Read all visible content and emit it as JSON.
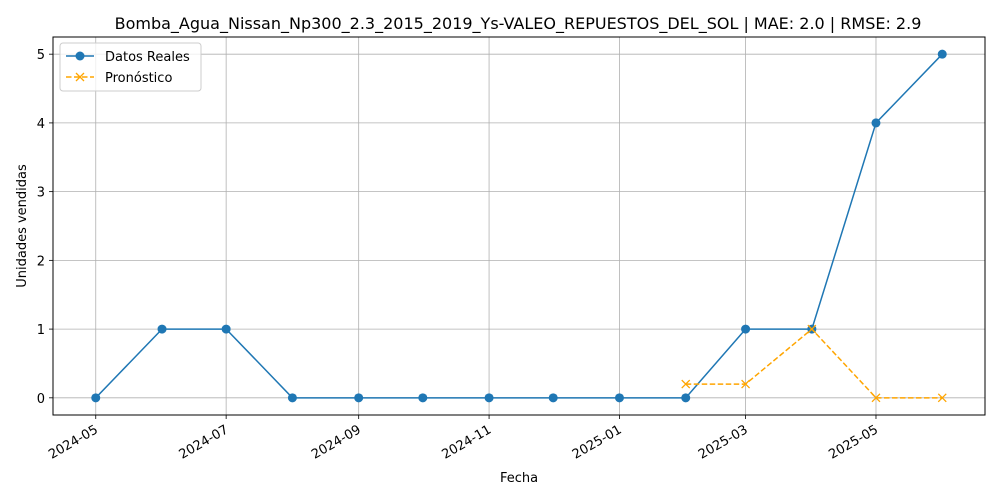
{
  "chart_data": {
    "type": "line",
    "title": "Bomba_Agua_Nissan_Np300_2.3_2015_2019_Ys-VALEO_REPUESTOS_DEL_SOL | MAE: 2.0 | RMSE: 2.9",
    "xlabel": "Fecha",
    "ylabel": "Unidades vendidas",
    "x_ticks": [
      "2024-05",
      "2024-07",
      "2024-09",
      "2024-11",
      "2025-01",
      "2025-03",
      "2025-05"
    ],
    "y_ticks": [
      0,
      1,
      2,
      3,
      4,
      5
    ],
    "xlim": [
      "2024-04-11",
      "2025-06-21"
    ],
    "ylim": [
      -0.25,
      5.25
    ],
    "grid": true,
    "legend_position": "top-left",
    "series": [
      {
        "name": "Datos Reales",
        "color": "#1f77b4",
        "style": "solid",
        "marker": "circle",
        "x": [
          "2024-05-01",
          "2024-06-01",
          "2024-07-01",
          "2024-08-01",
          "2024-09-01",
          "2024-10-01",
          "2024-11-01",
          "2024-12-01",
          "2025-01-01",
          "2025-02-01",
          "2025-03-01",
          "2025-04-01",
          "2025-05-01",
          "2025-06-01"
        ],
        "values": [
          0,
          1,
          1,
          0,
          0,
          0,
          0,
          0,
          0,
          0,
          1,
          1,
          4,
          5
        ]
      },
      {
        "name": "Pronóstico",
        "color": "#ffa500",
        "style": "dashed",
        "marker": "x",
        "x": [
          "2025-02-01",
          "2025-03-01",
          "2025-04-01",
          "2025-05-01",
          "2025-06-01"
        ],
        "values": [
          0.2,
          0.2,
          1,
          0,
          0
        ]
      }
    ]
  }
}
